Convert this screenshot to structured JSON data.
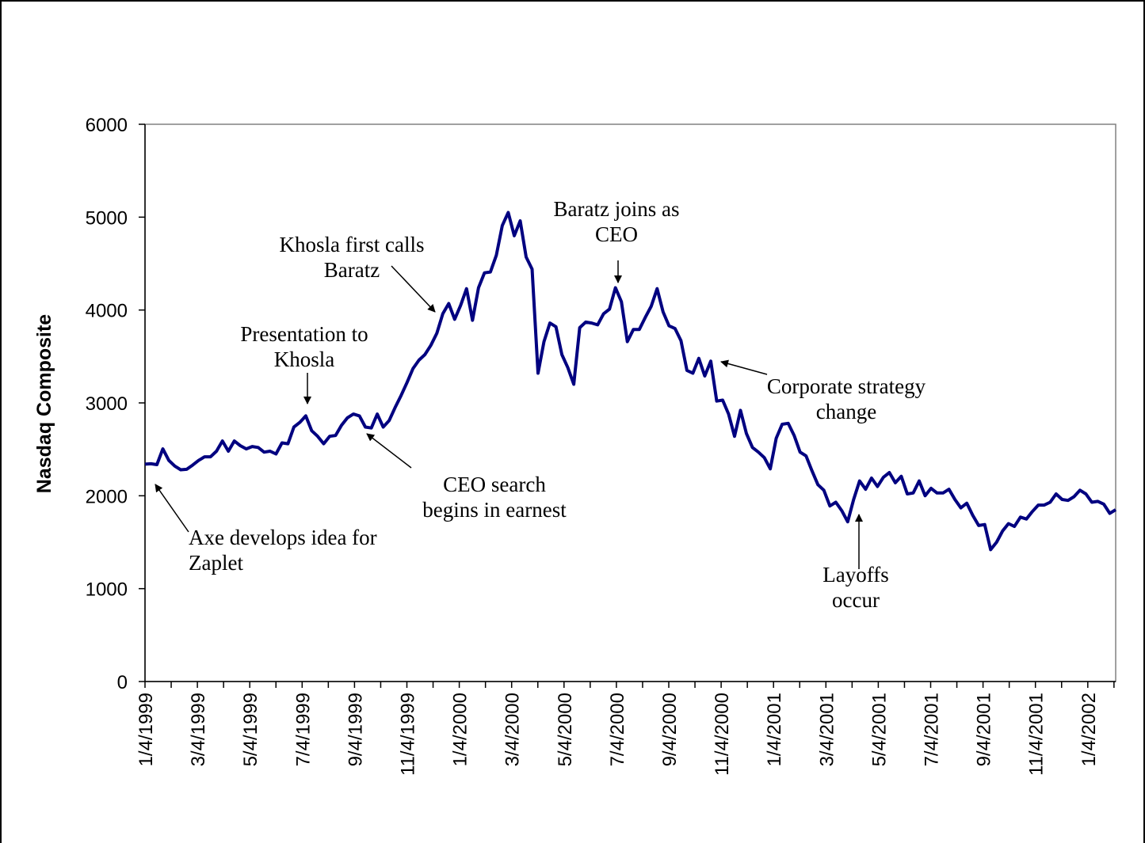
{
  "chart_data": {
    "type": "line",
    "title": "",
    "xlabel": "",
    "ylabel": "Nasdaq Composite",
    "ylim": [
      0,
      6000
    ],
    "yticks": [
      0,
      1000,
      2000,
      3000,
      4000,
      5000,
      6000
    ],
    "xticks": [
      "1/4/1999",
      "3/4/1999",
      "5/4/1999",
      "7/4/1999",
      "9/4/1999",
      "11/4/1999",
      "1/4/2000",
      "3/4/2000",
      "5/4/2000",
      "7/4/2000",
      "9/4/2000",
      "11/4/2000",
      "1/4/2001",
      "3/4/2001",
      "5/4/2001",
      "7/4/2001",
      "9/4/2001",
      "11/4/2001",
      "1/4/2002"
    ],
    "grid": false,
    "legend": "none",
    "colors": {
      "line": "#000080",
      "axis": "#808080",
      "frame": "#000000"
    },
    "series": [
      {
        "values": [
          2340,
          2345,
          2335,
          2505,
          2380,
          2320,
          2280,
          2285,
          2330,
          2380,
          2420,
          2420,
          2480,
          2590,
          2480,
          2590,
          2540,
          2505,
          2530,
          2520,
          2470,
          2480,
          2450,
          2570,
          2560,
          2740,
          2790,
          2860,
          2700,
          2640,
          2560,
          2640,
          2650,
          2760,
          2840,
          2880,
          2860,
          2740,
          2730,
          2880,
          2740,
          2810,
          2950,
          3080,
          3220,
          3370,
          3460,
          3520,
          3620,
          3750,
          3960,
          4070,
          3900,
          4050,
          4230,
          3890,
          4240,
          4400,
          4410,
          4590,
          4910,
          5050,
          4800,
          4960,
          4570,
          4440,
          3320,
          3660,
          3860,
          3820,
          3520,
          3380,
          3200,
          3810,
          3870,
          3860,
          3840,
          3960,
          4010,
          4240,
          4090,
          3660,
          3790,
          3790,
          3920,
          4040,
          4230,
          3980,
          3830,
          3800,
          3670,
          3350,
          3320,
          3480,
          3290,
          3450,
          3020,
          3030,
          2880,
          2640,
          2920,
          2670,
          2520,
          2470,
          2410,
          2290,
          2620,
          2770,
          2780,
          2650,
          2470,
          2430,
          2270,
          2120,
          2060,
          1890,
          1930,
          1840,
          1720,
          1960,
          2160,
          2070,
          2190,
          2100,
          2200,
          2250,
          2140,
          2210,
          2020,
          2030,
          2160,
          2000,
          2080,
          2030,
          2030,
          2070,
          1960,
          1870,
          1920,
          1790,
          1680,
          1690,
          1420,
          1500,
          1620,
          1700,
          1670,
          1770,
          1750,
          1830,
          1900,
          1900,
          1930,
          2020,
          1960,
          1950,
          1990,
          2060,
          2020,
          1930,
          1940,
          1910,
          1810,
          1850
        ]
      }
    ],
    "annotations": [
      {
        "lines": [
          "Axe develops idea for",
          "Zaplet"
        ]
      },
      {
        "lines": [
          "Presentation to",
          "Khosla"
        ]
      },
      {
        "lines": [
          "CEO search",
          "begins in earnest"
        ]
      },
      {
        "lines": [
          "Khosla first calls",
          "Baratz"
        ]
      },
      {
        "lines": [
          "Baratz joins as",
          "CEO"
        ]
      },
      {
        "lines": [
          "Corporate strategy",
          "change"
        ]
      },
      {
        "lines": [
          "Layoffs",
          "occur"
        ]
      }
    ]
  }
}
